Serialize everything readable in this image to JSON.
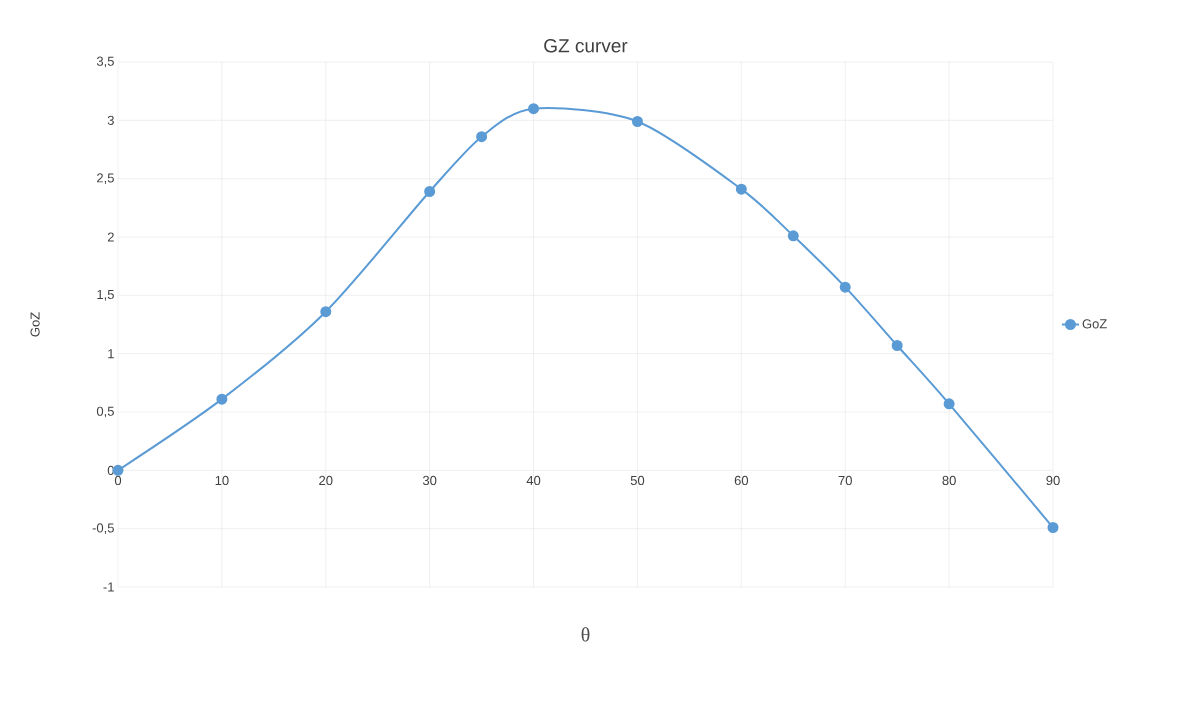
{
  "chart_data": {
    "type": "line",
    "title": "GZ curver",
    "xlabel": "θ",
    "ylabel": "GoZ",
    "x": [
      0,
      10,
      20,
      30,
      35,
      40,
      50,
      60,
      65,
      70,
      75,
      80,
      90
    ],
    "series": [
      {
        "name": "GoZ",
        "color": "#5b9bd5",
        "values": [
          0,
          0.61,
          1.36,
          2.39,
          2.86,
          3.1,
          2.99,
          2.41,
          2.01,
          1.57,
          1.07,
          0.57,
          -0.49
        ]
      }
    ],
    "xlim": [
      0,
      90
    ],
    "xticks": [
      0,
      10,
      20,
      30,
      40,
      50,
      60,
      70,
      80,
      90
    ],
    "ylim": [
      -1,
      3.5
    ],
    "yticks": [
      {
        "value": -1,
        "label": "-1"
      },
      {
        "value": -0.5,
        "label": "-0,5"
      },
      {
        "value": 0,
        "label": "0"
      },
      {
        "value": 0.5,
        "label": "0,5"
      },
      {
        "value": 1,
        "label": "1"
      },
      {
        "value": 1.5,
        "label": "1,5"
      },
      {
        "value": 2,
        "label": "2"
      },
      {
        "value": 2.5,
        "label": "2,5"
      },
      {
        "value": 3,
        "label": "3"
      },
      {
        "value": 3.5,
        "label": "3,5"
      }
    ],
    "grid": true,
    "legend": "right",
    "marker": "circle",
    "line_style": "solid"
  }
}
